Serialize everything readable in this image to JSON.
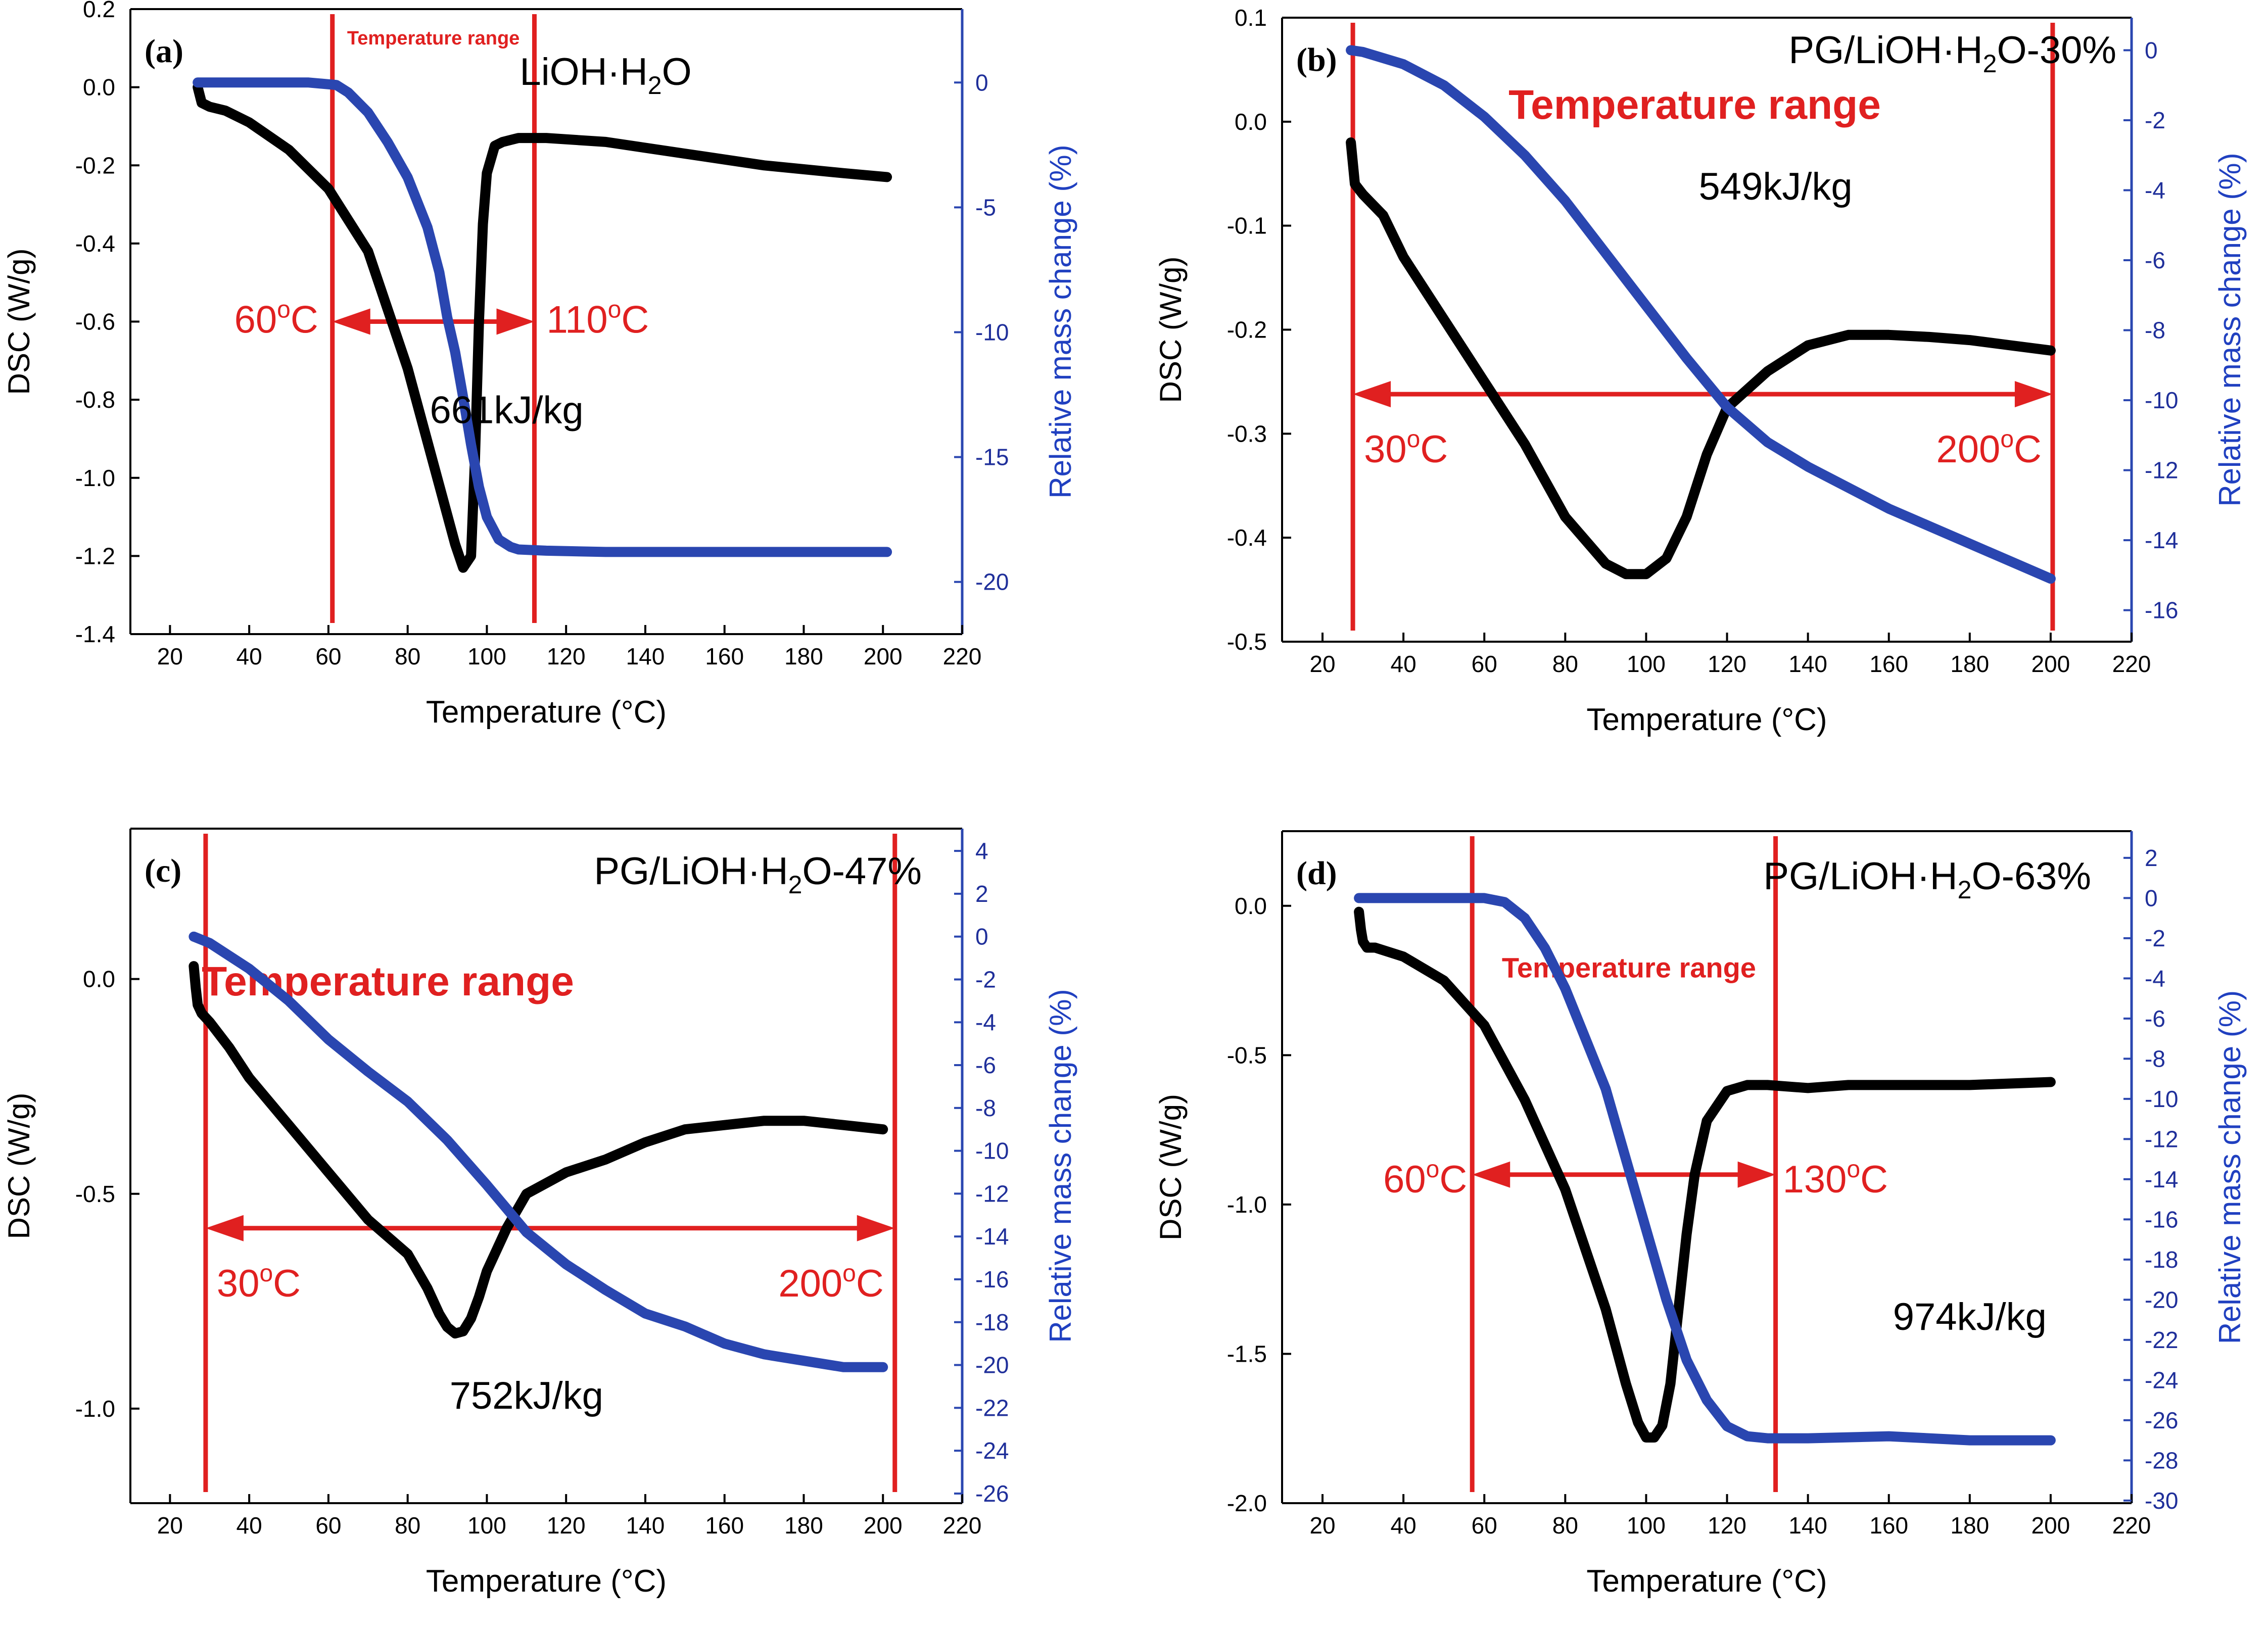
{
  "chart_data": [
    {
      "id": "a",
      "type": "line",
      "panel_label": "(a)",
      "title_base": "LiOH·H",
      "title_sub": "2",
      "title_tail": "O",
      "xlabel": "Temperature (°C)",
      "ylabel": "DSC (W/g)",
      "y2label": "Relative mass change (%)",
      "xlim": [
        10,
        220
      ],
      "ylim": [
        -1.4,
        0.2
      ],
      "y2lim": [
        -22.09,
        2.94
      ],
      "xticks": [
        20,
        40,
        60,
        80,
        100,
        120,
        140,
        160,
        180,
        200,
        220
      ],
      "yticks": [
        "0.2",
        "0.0",
        "-0.2",
        "-0.4",
        "-0.6",
        "-0.8",
        "-1.0",
        "-1.2",
        "-1.4"
      ],
      "y2ticks": [
        "0",
        "-5",
        "-10",
        "-15",
        "-20"
      ],
      "temperature_range": {
        "label": "Temperature range",
        "start": 61,
        "end": 112,
        "start_label": "60",
        "end_label": "110",
        "unit_label": "C",
        "arrow_y": -0.6,
        "size": "small"
      },
      "energy": "661kJ/kg",
      "series": [
        {
          "name": "DSC",
          "axis": "left",
          "color": "#000000",
          "x": [
            27,
            28,
            30,
            34,
            40,
            50,
            60,
            70,
            80,
            88,
            92,
            94,
            96,
            97,
            98,
            99,
            100,
            102,
            104,
            108,
            115,
            130,
            150,
            170,
            190,
            201
          ],
          "y": [
            0.0,
            -0.04,
            -0.05,
            -0.06,
            -0.09,
            -0.16,
            -0.26,
            -0.42,
            -0.72,
            -1.02,
            -1.17,
            -1.23,
            -1.2,
            -0.95,
            -0.6,
            -0.35,
            -0.22,
            -0.15,
            -0.14,
            -0.13,
            -0.13,
            -0.14,
            -0.17,
            -0.2,
            -0.22,
            -0.23
          ]
        },
        {
          "name": "Relative mass change",
          "axis": "right",
          "color": "#2a46b0",
          "x": [
            27,
            40,
            55,
            62,
            65,
            70,
            75,
            80,
            85,
            88,
            90,
            92,
            94,
            96,
            98,
            100,
            103,
            106,
            108,
            115,
            130,
            160,
            201
          ],
          "y": [
            0,
            0,
            0,
            -0.1,
            -0.4,
            -1.2,
            -2.4,
            -3.8,
            -5.8,
            -7.6,
            -9.4,
            -10.8,
            -12.6,
            -14.5,
            -16.2,
            -17.4,
            -18.3,
            -18.6,
            -18.7,
            -18.75,
            -18.8,
            -18.8,
            -18.8
          ]
        }
      ]
    },
    {
      "id": "b",
      "type": "line",
      "panel_label": "(b)",
      "title_base": "PG/LiOH·H",
      "title_sub": "2",
      "title_tail": "O-30%",
      "xlabel": "Temperature (°C)",
      "ylabel": "DSC (W/g)",
      "y2label": "Relative mass change (%)",
      "xlim": [
        10,
        220
      ],
      "ylim": [
        -0.5,
        0.1
      ],
      "y2lim": [
        -16.9,
        0.93
      ],
      "xticks": [
        20,
        40,
        60,
        80,
        100,
        120,
        140,
        160,
        180,
        200,
        220
      ],
      "yticks": [
        "0.1",
        "0.0",
        "-0.1",
        "-0.2",
        "-0.3",
        "-0.4",
        "-0.5"
      ],
      "y2ticks": [
        "0",
        "-2",
        "-4",
        "-6",
        "-8",
        "-10",
        "-12",
        "-14",
        "-16"
      ],
      "temperature_range": {
        "label": "Temperature range",
        "start": 27.5,
        "end": 200.5,
        "start_label": "30",
        "end_label": "200",
        "unit_label": "C",
        "arrow_y": -0.262,
        "size": "large"
      },
      "energy": "549kJ/kg",
      "series": [
        {
          "name": "DSC",
          "axis": "left",
          "color": "#000000",
          "x": [
            27,
            27.5,
            28,
            29,
            30,
            35,
            40,
            50,
            60,
            70,
            80,
            90,
            95,
            100,
            105,
            110,
            115,
            120,
            130,
            140,
            150,
            160,
            170,
            180,
            190,
            200
          ],
          "y": [
            -0.02,
            -0.04,
            -0.06,
            -0.065,
            -0.07,
            -0.09,
            -0.13,
            -0.19,
            -0.25,
            -0.31,
            -0.38,
            -0.425,
            -0.435,
            -0.435,
            -0.42,
            -0.38,
            -0.32,
            -0.275,
            -0.24,
            -0.215,
            -0.205,
            -0.205,
            -0.207,
            -0.21,
            -0.215,
            -0.22
          ]
        },
        {
          "name": "Relative mass change",
          "axis": "right",
          "color": "#2a46b0",
          "x": [
            27,
            30,
            40,
            50,
            60,
            70,
            80,
            90,
            100,
            110,
            120,
            130,
            140,
            150,
            160,
            170,
            180,
            190,
            200
          ],
          "y": [
            0,
            -0.05,
            -0.4,
            -1.0,
            -1.9,
            -3.0,
            -4.3,
            -5.8,
            -7.3,
            -8.8,
            -10.2,
            -11.2,
            -11.9,
            -12.5,
            -13.1,
            -13.6,
            -14.1,
            -14.6,
            -15.1
          ]
        }
      ]
    },
    {
      "id": "c",
      "type": "line",
      "panel_label": "(c)",
      "title_base": "PG/LiOH·H",
      "title_sub": "2",
      "title_tail": "O-47%",
      "xlabel": "Temperature (°C)",
      "ylabel": "DSC (W/g)",
      "y2label": "Relative mass change (%)",
      "xlim": [
        10,
        220
      ],
      "ylim": [
        -1.22,
        0.35
      ],
      "y2lim": [
        -26.45,
        5.04
      ],
      "xticks": [
        20,
        40,
        60,
        80,
        100,
        120,
        140,
        160,
        180,
        200,
        220
      ],
      "yticks": [
        "0.0",
        "-0.5",
        "-1.0"
      ],
      "y2ticks": [
        "4",
        "2",
        "0",
        "-2",
        "-4",
        "-6",
        "-8",
        "-10",
        "-12",
        "-14",
        "-16",
        "-18",
        "-20",
        "-22",
        "-24",
        "-26"
      ],
      "temperature_range": {
        "label": "Temperature range",
        "start": 29,
        "end": 203,
        "start_label": "30",
        "end_label": "200",
        "unit_label": "C",
        "arrow_y": -0.58,
        "size": "large"
      },
      "energy": "752kJ/kg",
      "series": [
        {
          "name": "DSC",
          "axis": "left",
          "color": "#000000",
          "x": [
            26,
            26.5,
            27,
            28,
            30,
            35,
            40,
            50,
            60,
            70,
            80,
            85,
            88,
            90,
            92,
            94,
            96,
            98,
            100,
            105,
            110,
            120,
            130,
            140,
            150,
            160,
            170,
            180,
            190,
            200
          ],
          "y": [
            0.03,
            -0.02,
            -0.06,
            -0.08,
            -0.1,
            -0.16,
            -0.23,
            -0.34,
            -0.45,
            -0.56,
            -0.64,
            -0.72,
            -0.78,
            -0.81,
            -0.825,
            -0.82,
            -0.79,
            -0.74,
            -0.68,
            -0.58,
            -0.5,
            -0.45,
            -0.42,
            -0.38,
            -0.35,
            -0.34,
            -0.33,
            -0.33,
            -0.34,
            -0.35
          ]
        },
        {
          "name": "Relative mass change",
          "axis": "right",
          "color": "#2a46b0",
          "x": [
            26,
            30,
            40,
            50,
            60,
            70,
            80,
            90,
            100,
            110,
            120,
            130,
            140,
            150,
            160,
            170,
            180,
            190,
            200
          ],
          "y": [
            0,
            -0.3,
            -1.5,
            -3.0,
            -4.8,
            -6.3,
            -7.7,
            -9.5,
            -11.6,
            -13.8,
            -15.3,
            -16.5,
            -17.6,
            -18.2,
            -19.0,
            -19.5,
            -19.8,
            -20.1,
            -20.1
          ]
        }
      ]
    },
    {
      "id": "d",
      "type": "line",
      "panel_label": "(d)",
      "title_base": "PG/LiOH·H",
      "title_sub": "2",
      "title_tail": "O-63%",
      "xlabel": "Temperature (°C)",
      "ylabel": "DSC (W/g)",
      "y2label": "Relative mass change (%)",
      "xlim": [
        10,
        220
      ],
      "ylim": [
        -2.0,
        0.25
      ],
      "y2lim": [
        -30.13,
        3.33
      ],
      "xticks": [
        20,
        40,
        60,
        80,
        100,
        120,
        140,
        160,
        180,
        200,
        220
      ],
      "yticks": [
        "0.0",
        "-0.5",
        "-1.0",
        "-1.5",
        "-2.0"
      ],
      "y2ticks": [
        "2",
        "0",
        "-2",
        "-4",
        "-6",
        "-8",
        "-10",
        "-12",
        "-14",
        "-16",
        "-18",
        "-20",
        "-22",
        "-24",
        "-26",
        "-28",
        "-30"
      ],
      "temperature_range": {
        "label": "Temperature range",
        "start": 57,
        "end": 132,
        "start_label": "60",
        "end_label": "130",
        "unit_label": "C",
        "arrow_y": -0.9,
        "size": "small"
      },
      "energy": "974kJ/kg",
      "series": [
        {
          "name": "DSC",
          "axis": "left",
          "color": "#000000",
          "x": [
            29,
            29.5,
            30,
            31,
            33,
            40,
            50,
            60,
            70,
            80,
            90,
            95,
            98,
            100,
            102,
            104,
            106,
            108,
            110,
            112,
            115,
            120,
            125,
            130,
            140,
            150,
            160,
            180,
            200
          ],
          "y": [
            -0.02,
            -0.08,
            -0.12,
            -0.14,
            -0.14,
            -0.17,
            -0.25,
            -0.4,
            -0.65,
            -0.95,
            -1.35,
            -1.6,
            -1.73,
            -1.78,
            -1.78,
            -1.74,
            -1.6,
            -1.35,
            -1.1,
            -0.9,
            -0.72,
            -0.62,
            -0.6,
            -0.6,
            -0.61,
            -0.6,
            -0.6,
            -0.6,
            -0.59
          ]
        },
        {
          "name": "Relative mass change",
          "axis": "right",
          "color": "#2a46b0",
          "x": [
            29,
            40,
            60,
            65,
            70,
            75,
            80,
            85,
            90,
            95,
            100,
            105,
            110,
            115,
            120,
            125,
            130,
            140,
            160,
            180,
            200
          ],
          "y": [
            0,
            0,
            0,
            -0.2,
            -1.0,
            -2.5,
            -4.5,
            -7.0,
            -9.5,
            -13.0,
            -16.5,
            -20.0,
            -23.0,
            -25.0,
            -26.3,
            -26.8,
            -26.9,
            -26.9,
            -26.8,
            -27.0,
            -27.0
          ]
        }
      ]
    }
  ]
}
